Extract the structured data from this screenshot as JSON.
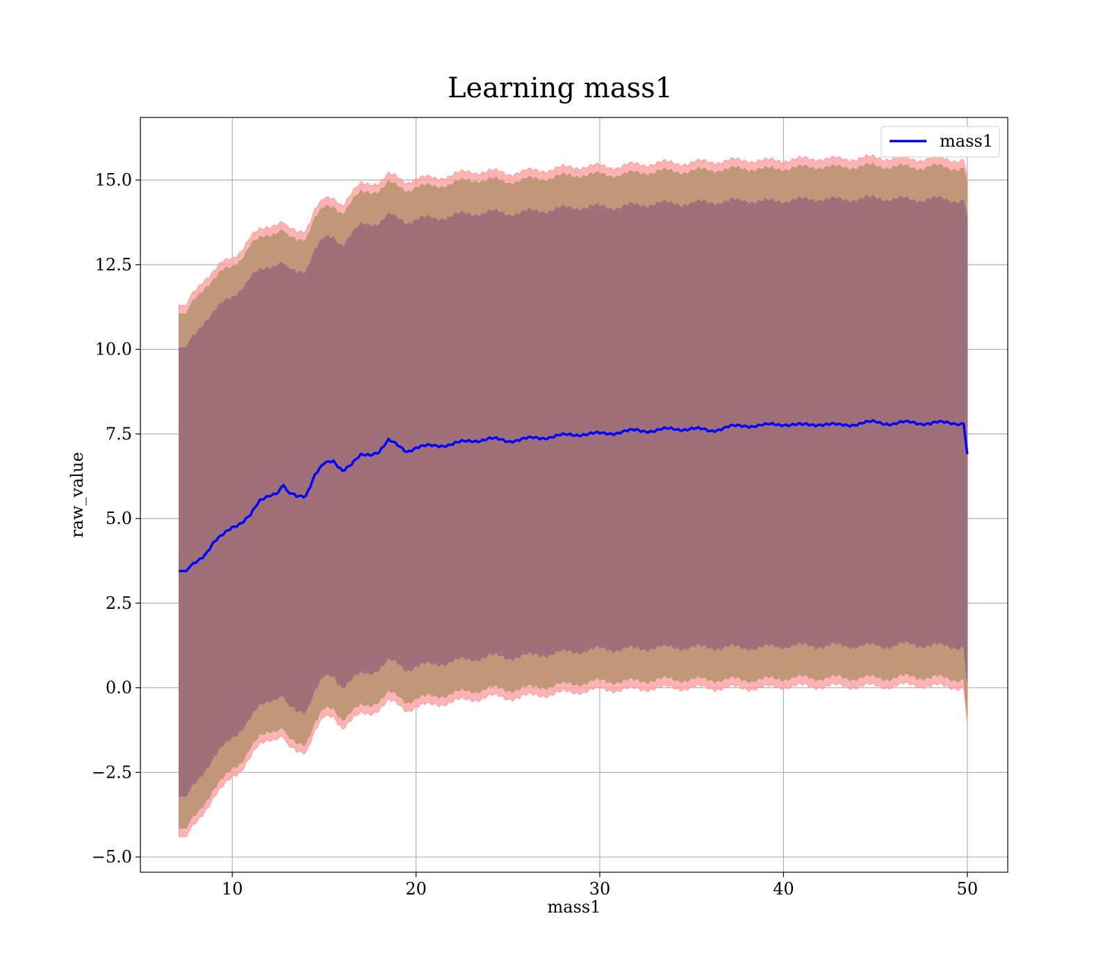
{
  "chart_data": {
    "type": "line",
    "title": "Learning mass1",
    "xlabel": "mass1",
    "ylabel": "raw_value",
    "xlim": [
      5,
      52.2
    ],
    "ylim": [
      -5.45,
      16.85
    ],
    "xticks": [
      10,
      20,
      30,
      40,
      50
    ],
    "xtick_labels": [
      "10",
      "20",
      "30",
      "40",
      "50"
    ],
    "yticks": [
      -5.0,
      -2.5,
      0.0,
      2.5,
      5.0,
      7.5,
      10.0,
      12.5,
      15.0
    ],
    "ytick_labels": [
      "−5.0",
      "−2.5",
      "0.0",
      "2.5",
      "5.0",
      "7.5",
      "10.0",
      "12.5",
      "15.0"
    ],
    "grid": true,
    "legend_position": "top-right",
    "series": [
      {
        "name": "mass1",
        "color": "#0000ff",
        "x": [
          7.1,
          7.5,
          8.0,
          8.5,
          9.0,
          9.5,
          10.0,
          10.5,
          11.0,
          11.5,
          12.0,
          12.5,
          12.8,
          13.0,
          13.5,
          14.0,
          14.5,
          15.0,
          15.5,
          16.0,
          16.5,
          17.0,
          17.5,
          18.0,
          18.5,
          19.0,
          19.5,
          20.0,
          21.0,
          22.0,
          23.0,
          24.0,
          25.0,
          26.0,
          27.0,
          28.0,
          29.0,
          30.0,
          31.0,
          32.0,
          33.0,
          34.0,
          35.0,
          36.0,
          37.0,
          38.0,
          39.0,
          40.0,
          41.0,
          42.0,
          43.0,
          44.0,
          45.0,
          46.0,
          47.0,
          48.0,
          49.0,
          49.8,
          50.0
        ],
        "y": [
          3.45,
          3.45,
          3.7,
          3.95,
          4.3,
          4.5,
          4.75,
          4.9,
          5.1,
          5.5,
          5.7,
          5.8,
          6.0,
          5.75,
          5.65,
          5.7,
          6.3,
          6.6,
          6.7,
          6.45,
          6.6,
          6.85,
          6.9,
          7.0,
          7.3,
          7.15,
          7.0,
          7.1,
          7.15,
          7.2,
          7.3,
          7.35,
          7.3,
          7.35,
          7.4,
          7.45,
          7.5,
          7.5,
          7.55,
          7.6,
          7.6,
          7.65,
          7.65,
          7.6,
          7.7,
          7.75,
          7.75,
          7.8,
          7.75,
          7.8,
          7.75,
          7.8,
          7.85,
          7.8,
          7.85,
          7.8,
          7.85,
          7.8,
          6.9
        ]
      }
    ],
    "bands": [
      {
        "name": "outer band",
        "color": "#ff9999",
        "upper": [
          11.3,
          11.3,
          11.75,
          12.1,
          12.3,
          12.55,
          12.7,
          12.95,
          13.3,
          13.5,
          13.65,
          13.75,
          13.75,
          13.55,
          13.45,
          13.55,
          14.15,
          14.4,
          14.45,
          14.3,
          14.6,
          14.85,
          14.9,
          14.95,
          15.15,
          15.05,
          14.95,
          15.05,
          15.05,
          15.15,
          15.25,
          15.25,
          15.2,
          15.25,
          15.3,
          15.35,
          15.4,
          15.4,
          15.4,
          15.45,
          15.5,
          15.5,
          15.5,
          15.55,
          15.55,
          15.6,
          15.55,
          15.6,
          15.6,
          15.65,
          15.6,
          15.65,
          15.65,
          15.65,
          15.6,
          15.65,
          15.6,
          15.6,
          15.1
        ],
        "lower": [
          -4.4,
          -4.4,
          -4.0,
          -3.6,
          -3.25,
          -2.95,
          -2.6,
          -2.4,
          -2.05,
          -1.7,
          -1.5,
          -1.45,
          -1.45,
          -1.75,
          -1.9,
          -1.85,
          -1.25,
          -0.9,
          -0.85,
          -1.15,
          -0.95,
          -0.8,
          -0.75,
          -0.6,
          -0.4,
          -0.5,
          -0.65,
          -0.55,
          -0.5,
          -0.4,
          -0.35,
          -0.25,
          -0.3,
          -0.25,
          -0.2,
          -0.15,
          -0.1,
          -0.05,
          -0.05,
          -0.05,
          0.0,
          0.0,
          0.0,
          0.0,
          0.0,
          0.0,
          0.0,
          0.05,
          0.05,
          0.05,
          0.05,
          0.05,
          0.05,
          0.05,
          0.1,
          0.05,
          0.05,
          0.0,
          -1.05
        ]
      },
      {
        "name": "middle band",
        "color": "#c1977a",
        "upper": [
          11.05,
          11.05,
          11.5,
          11.85,
          12.05,
          12.3,
          12.45,
          12.7,
          13.05,
          13.25,
          13.4,
          13.5,
          13.5,
          13.3,
          13.2,
          13.3,
          13.9,
          14.15,
          14.2,
          14.05,
          14.35,
          14.6,
          14.65,
          14.7,
          14.9,
          14.8,
          14.7,
          14.8,
          14.8,
          14.9,
          15.0,
          15.0,
          14.95,
          15.0,
          15.05,
          15.1,
          15.15,
          15.15,
          15.15,
          15.2,
          15.25,
          15.25,
          15.25,
          15.3,
          15.3,
          15.35,
          15.3,
          15.35,
          15.35,
          15.4,
          15.35,
          15.4,
          15.4,
          15.4,
          15.35,
          15.4,
          15.35,
          15.35,
          14.9
        ],
        "lower": [
          -4.15,
          -4.15,
          -3.75,
          -3.35,
          -3.0,
          -2.7,
          -2.35,
          -2.15,
          -1.8,
          -1.45,
          -1.25,
          -1.2,
          -1.2,
          -1.5,
          -1.65,
          -1.6,
          -1.0,
          -0.65,
          -0.6,
          -0.9,
          -0.7,
          -0.55,
          -0.5,
          -0.35,
          -0.15,
          -0.25,
          -0.4,
          -0.3,
          -0.25,
          -0.15,
          -0.1,
          0.0,
          -0.05,
          0.0,
          0.05,
          0.1,
          0.15,
          0.2,
          0.2,
          0.2,
          0.25,
          0.25,
          0.25,
          0.25,
          0.25,
          0.25,
          0.25,
          0.3,
          0.3,
          0.3,
          0.3,
          0.3,
          0.3,
          0.3,
          0.35,
          0.3,
          0.3,
          0.25,
          -0.8
        ]
      },
      {
        "name": "inner band",
        "color": "#a0707a",
        "upper": [
          10.05,
          10.05,
          10.45,
          10.85,
          11.1,
          11.35,
          11.55,
          11.8,
          12.1,
          12.3,
          12.45,
          12.55,
          12.55,
          12.35,
          12.25,
          12.35,
          12.95,
          13.25,
          13.3,
          13.1,
          13.4,
          13.65,
          13.7,
          13.75,
          13.95,
          13.85,
          13.75,
          13.85,
          13.85,
          13.95,
          14.0,
          14.05,
          14.0,
          14.05,
          14.1,
          14.15,
          14.2,
          14.2,
          14.2,
          14.25,
          14.3,
          14.3,
          14.3,
          14.35,
          14.35,
          14.4,
          14.35,
          14.4,
          14.4,
          14.45,
          14.4,
          14.45,
          14.45,
          14.45,
          14.4,
          14.45,
          14.4,
          14.4,
          13.9
        ],
        "lower": [
          -3.2,
          -3.2,
          -2.8,
          -2.4,
          -2.05,
          -1.75,
          -1.45,
          -1.2,
          -0.9,
          -0.55,
          -0.35,
          -0.25,
          -0.25,
          -0.55,
          -0.7,
          -0.65,
          -0.05,
          0.3,
          0.35,
          0.05,
          0.25,
          0.4,
          0.45,
          0.6,
          0.8,
          0.7,
          0.55,
          0.65,
          0.7,
          0.8,
          0.85,
          0.95,
          0.9,
          0.95,
          1.0,
          1.05,
          1.1,
          1.15,
          1.15,
          1.15,
          1.2,
          1.2,
          1.2,
          1.2,
          1.2,
          1.2,
          1.2,
          1.25,
          1.25,
          1.25,
          1.25,
          1.25,
          1.25,
          1.25,
          1.3,
          1.25,
          1.25,
          1.2,
          0.15
        ]
      }
    ]
  }
}
